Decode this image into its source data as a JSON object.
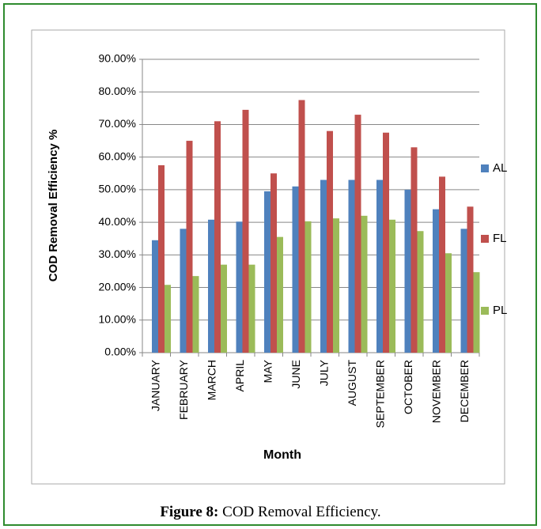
{
  "chart_data": {
    "type": "bar",
    "y_label": "COD Removal Efficiency %",
    "x_label": "Month",
    "caption_label": "Figure 8:",
    "caption_text": "COD Removal Efficiency.",
    "categories": [
      "JANUARY",
      "FEBRUARY",
      "MARCH",
      "APRIL",
      "MAY",
      "JUNE",
      "JULY",
      "AUGUST",
      "SEPTEMBER",
      "OCTOBER",
      "NOVEMBER",
      "DECEMBER"
    ],
    "series": [
      {
        "name": "AL",
        "color": "#4f81bd",
        "values": [
          34.5,
          38,
          40.8,
          40.2,
          49.5,
          51,
          53,
          53,
          53,
          50,
          44,
          38
        ]
      },
      {
        "name": "FL",
        "color": "#c0504d",
        "values": [
          57.5,
          65,
          71,
          74.5,
          55,
          77.5,
          68,
          73,
          67.5,
          63,
          54,
          44.8
        ]
      },
      {
        "name": "PL",
        "color": "#9bbb59",
        "values": [
          20.8,
          23.5,
          27,
          27,
          35.5,
          40.3,
          41.2,
          42,
          40.8,
          37.3,
          30.5,
          24.7
        ]
      }
    ],
    "ylim": [
      0,
      90
    ],
    "yticks": [
      {
        "value": 0,
        "label": "0.00%"
      },
      {
        "value": 10,
        "label": "10.00%"
      },
      {
        "value": 20,
        "label": "20.00%"
      },
      {
        "value": 30,
        "label": "30.00%"
      },
      {
        "value": 40,
        "label": "40.00%"
      },
      {
        "value": 50,
        "label": "50.00%"
      },
      {
        "value": 60,
        "label": "60.00%"
      },
      {
        "value": 70,
        "label": "70.00%"
      },
      {
        "value": 80,
        "label": "80.00%"
      },
      {
        "value": 90,
        "label": "90.00%"
      }
    ],
    "grid": true,
    "legend": "right"
  }
}
